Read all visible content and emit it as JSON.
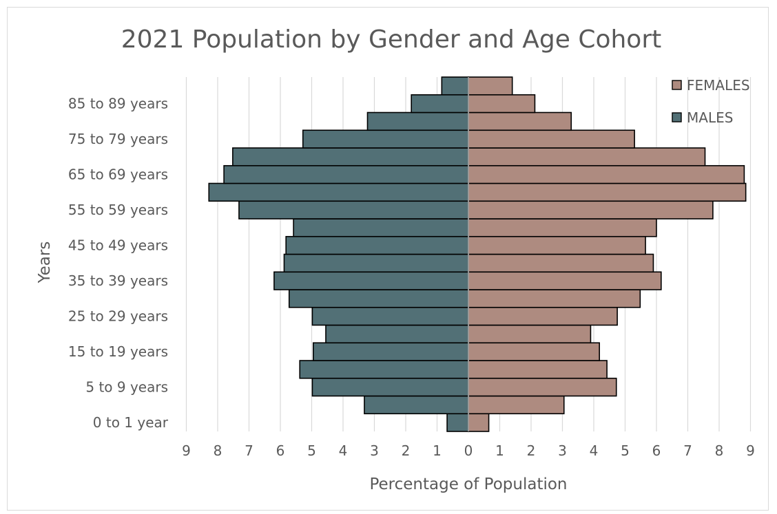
{
  "chart_data": {
    "type": "bar",
    "orientation": "horizontal",
    "title": "2021 Population by Gender and Age Cohort",
    "xlabel": "Percentage of Population",
    "ylabel": "Years",
    "xlim": [
      -9,
      9
    ],
    "x_ticks": [
      9,
      8,
      7,
      6,
      5,
      4,
      3,
      2,
      1,
      0,
      1,
      2,
      3,
      4,
      5,
      6,
      7,
      8,
      9
    ],
    "grid": true,
    "legend_position": "top-right",
    "categories": [
      "0 to 1 year",
      "",
      "5 to 9 years",
      "",
      "15 to 19 years",
      "",
      "25 to 29 years",
      "",
      "35 to 39 years",
      "",
      "45 to 49 years",
      "",
      "55 to 59 years",
      "",
      "65 to 69 years",
      "",
      "75 to 79 years",
      "",
      "85 to 89 years",
      ""
    ],
    "series": [
      {
        "name": "FEMALES",
        "color": "#ae8b80",
        "values": [
          0.65,
          3.05,
          4.72,
          4.42,
          4.18,
          3.9,
          4.75,
          5.48,
          6.15,
          5.9,
          5.65,
          6.0,
          7.8,
          8.85,
          8.8,
          7.55,
          5.3,
          3.28,
          2.12,
          1.4
        ]
      },
      {
        "name": "MALES",
        "color": "#527076",
        "values": [
          0.68,
          3.32,
          4.98,
          5.38,
          4.95,
          4.55,
          4.98,
          5.72,
          6.2,
          5.88,
          5.82,
          5.58,
          7.32,
          8.28,
          7.8,
          7.52,
          5.28,
          3.22,
          1.82,
          0.85
        ]
      }
    ]
  }
}
